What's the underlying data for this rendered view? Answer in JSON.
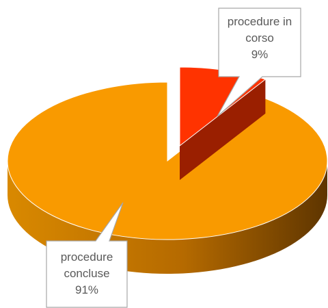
{
  "chart_data": {
    "type": "pie3d",
    "categories": [
      "procedure in corso",
      "procedure concluse"
    ],
    "values": [
      9,
      91
    ],
    "value_labels": [
      "9%",
      "91%"
    ],
    "colors": [
      "#ff3300",
      "#f99a00"
    ]
  }
}
